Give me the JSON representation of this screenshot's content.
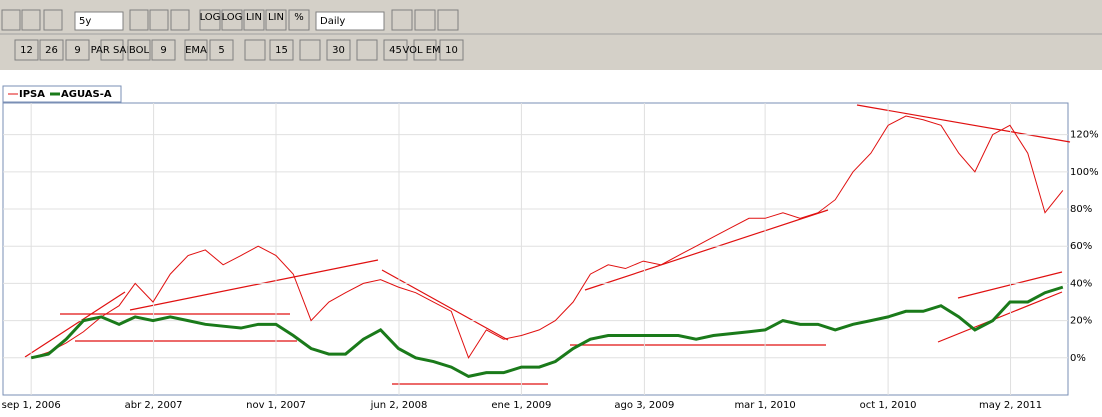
{
  "toolbar": {
    "period": "5y",
    "interval": "Daily",
    "scale_buttons": [
      "LOG",
      "LOG",
      "LIN",
      "LIN",
      "%"
    ],
    "indicator_fields": [
      "12",
      "26",
      "9",
      "PAR SAR",
      "BOL",
      "9",
      "EMA",
      "5",
      "15",
      "30",
      "45",
      "VOL EMA",
      "10"
    ]
  },
  "chart_data": {
    "type": "line",
    "x": [
      "2006-09-01",
      "2006-10-01",
      "2006-11-01",
      "2006-12-01",
      "2007-01-01",
      "2007-02-01",
      "2007-03-01",
      "2007-04-01",
      "2007-05-01",
      "2007-06-01",
      "2007-07-01",
      "2007-08-01",
      "2007-09-01",
      "2007-10-01",
      "2007-11-01",
      "2007-12-01",
      "2008-01-01",
      "2008-02-01",
      "2008-03-01",
      "2008-04-01",
      "2008-05-01",
      "2008-06-01",
      "2008-07-01",
      "2008-08-01",
      "2008-09-01",
      "2008-10-01",
      "2008-11-01",
      "2008-12-01",
      "2009-01-01",
      "2009-02-01",
      "2009-03-01",
      "2009-04-01",
      "2009-05-01",
      "2009-06-01",
      "2009-07-01",
      "2009-08-01",
      "2009-09-01",
      "2009-10-01",
      "2009-11-01",
      "2009-12-01",
      "2010-01-01",
      "2010-02-01",
      "2010-03-01",
      "2010-04-01",
      "2010-05-01",
      "2010-06-01",
      "2010-07-01",
      "2010-08-01",
      "2010-09-01",
      "2010-10-01",
      "2010-11-01",
      "2010-12-01",
      "2011-01-01",
      "2011-02-01",
      "2011-03-01",
      "2011-04-01",
      "2011-05-01",
      "2011-06-01",
      "2011-07-01",
      "2011-08-01"
    ],
    "series": [
      {
        "name": "IPSA",
        "color": "#e01010",
        "width": 1,
        "values": [
          0,
          3,
          8,
          14,
          22,
          28,
          40,
          30,
          45,
          55,
          58,
          50,
          55,
          60,
          55,
          45,
          20,
          30,
          35,
          40,
          42,
          38,
          35,
          30,
          25,
          0,
          15,
          10,
          12,
          15,
          20,
          30,
          45,
          50,
          48,
          52,
          50,
          55,
          60,
          65,
          70,
          75,
          75,
          78,
          75,
          78,
          85,
          100,
          110,
          125,
          130,
          128,
          125,
          110,
          100,
          120,
          125,
          110,
          78,
          90
        ]
      },
      {
        "name": "AGUAS-A",
        "color": "#1a7a1a",
        "width": 3,
        "values": [
          0,
          2,
          10,
          20,
          22,
          18,
          22,
          20,
          22,
          20,
          18,
          17,
          16,
          18,
          18,
          12,
          5,
          2,
          2,
          10,
          15,
          5,
          0,
          -2,
          -5,
          -10,
          -8,
          -8,
          -5,
          -5,
          -2,
          5,
          10,
          12,
          12,
          12,
          12,
          12,
          10,
          12,
          13,
          14,
          15,
          20,
          18,
          18,
          15,
          18,
          20,
          22,
          25,
          25,
          28,
          22,
          15,
          20,
          30,
          30,
          35,
          38
        ]
      }
    ],
    "xlim": [
      "2006-07-14",
      "2011-08-10"
    ],
    "xticks": [
      {
        "value": "2006-09-01",
        "label": "sep 1, 2006"
      },
      {
        "value": "2007-04-02",
        "label": "abr 2, 2007"
      },
      {
        "value": "2007-11-01",
        "label": "nov 1, 2007"
      },
      {
        "value": "2008-06-02",
        "label": "jun 2, 2008"
      },
      {
        "value": "2009-01-01",
        "label": "ene 1, 2009"
      },
      {
        "value": "2009-08-03",
        "label": "ago 3, 2009"
      },
      {
        "value": "2010-03-01",
        "label": "mar 1, 2010"
      },
      {
        "value": "2010-10-01",
        "label": "oct 1, 2010"
      },
      {
        "value": "2011-05-02",
        "label": "may 2, 2011"
      }
    ],
    "ylim": [
      -20,
      137
    ],
    "yticks": [
      {
        "value": 0,
        "label": "0%"
      },
      {
        "value": 20,
        "label": "20%"
      },
      {
        "value": 40,
        "label": "40%"
      },
      {
        "value": 60,
        "label": "60%"
      },
      {
        "value": 80,
        "label": "80%"
      },
      {
        "value": 100,
        "label": "100%"
      },
      {
        "value": 120,
        "label": "120%"
      }
    ],
    "grid": true
  }
}
